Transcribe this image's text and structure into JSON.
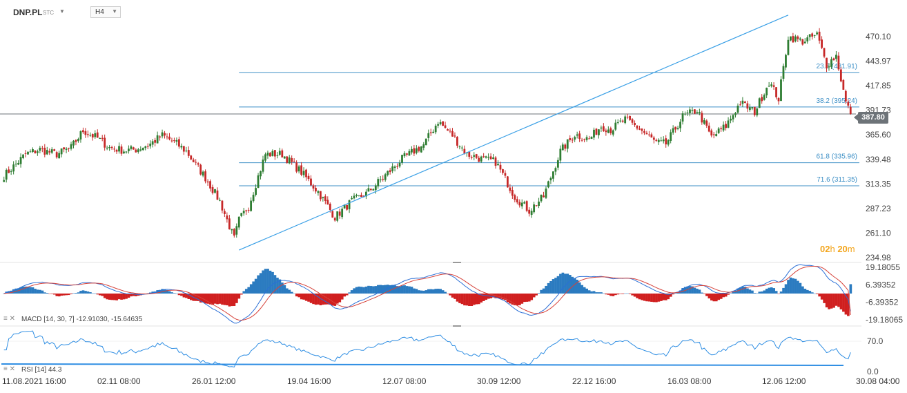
{
  "header": {
    "symbol": "DNP.PL",
    "symbol_tag": "STC",
    "timeframe": "H4"
  },
  "colors": {
    "up": "#2e7d32",
    "down": "#c62828",
    "fib_line": "#3c8fc6",
    "trend_line": "#3aa0e6",
    "macd_line": "#2b6fd6",
    "signal_line": "#d6423a",
    "rsi_line": "#2f8ee3",
    "countdown": "#f3a51c"
  },
  "price_tag": "387.80",
  "countdown": {
    "hours": "02",
    "hours_unit": "h",
    "minutes": "20",
    "minutes_unit": "m"
  },
  "macd_label": {
    "name": "MACD",
    "params": "[14, 30, 7]",
    "values": "-12.91030,  -15.64635"
  },
  "rsi_label": {
    "name": "RSI",
    "params": "[14]",
    "value": "44.3"
  },
  "chart_data": [
    {
      "type": "candlestick",
      "ylim": [
        234.98,
        496.0
      ],
      "y_ticks": [
        "470.10",
        "443.97",
        "417.85",
        "391.73",
        "365.60",
        "339.48",
        "313.35",
        "287.23",
        "261.10",
        "234.98"
      ],
      "x_ticks": [
        "11.08.2021  16:00",
        "02.11  08:00",
        "26.01  12:00",
        "19.04  16:00",
        "12.07  08:00",
        "30.09  12:00",
        "22.12  16:00",
        "16.03  08:00",
        "12.06  12:00",
        "30.08  04:00"
      ],
      "last_price": 387.8,
      "anchors": [
        [
          0,
          322
        ],
        [
          4,
          332
        ],
        [
          9,
          345
        ],
        [
          15,
          350
        ],
        [
          22,
          345
        ],
        [
          28,
          352
        ],
        [
          33,
          370
        ],
        [
          39,
          362
        ],
        [
          44,
          352
        ],
        [
          50,
          349
        ],
        [
          55,
          350
        ],
        [
          61,
          356
        ],
        [
          66,
          365
        ],
        [
          71,
          358
        ],
        [
          76,
          348
        ],
        [
          84,
          320
        ],
        [
          90,
          295
        ],
        [
          96,
          255
        ],
        [
          98,
          275
        ],
        [
          102,
          290
        ],
        [
          109,
          345
        ],
        [
          116,
          345
        ],
        [
          124,
          326
        ],
        [
          131,
          305
        ],
        [
          138,
          278
        ],
        [
          145,
          295
        ],
        [
          151,
          303
        ],
        [
          158,
          320
        ],
        [
          166,
          340
        ],
        [
          175,
          355
        ],
        [
          181,
          380
        ],
        [
          187,
          365
        ],
        [
          193,
          345
        ],
        [
          199,
          340
        ],
        [
          205,
          337
        ],
        [
          213,
          300
        ],
        [
          219,
          285
        ],
        [
          225,
          300
        ],
        [
          232,
          348
        ],
        [
          238,
          366
        ],
        [
          244,
          361
        ],
        [
          249,
          375
        ],
        [
          253,
          371
        ],
        [
          259,
          382
        ],
        [
          265,
          372
        ],
        [
          272,
          357
        ],
        [
          276,
          356
        ],
        [
          283,
          385
        ],
        [
          289,
          392
        ],
        [
          295,
          363
        ],
        [
          301,
          375
        ],
        [
          307,
          400
        ],
        [
          313,
          390
        ],
        [
          319,
          422
        ],
        [
          323,
          404
        ],
        [
          327,
          470
        ],
        [
          333,
          465
        ],
        [
          339,
          472
        ],
        [
          343,
          440
        ],
        [
          347,
          450
        ],
        [
          351,
          400
        ]
      ],
      "last_index": 353,
      "fib_levels": [
        {
          "label": "23.6 (431.91)",
          "value": 431.91
        },
        {
          "label": "38.2 (395.24)",
          "value": 395.24
        },
        {
          "label": "61.8 (335.96)",
          "value": 335.96
        },
        {
          "label": "71.6 (311.35)",
          "value": 311.35
        }
      ],
      "trend_line": {
        "from_index": 98,
        "from_value": 243.0,
        "to_index": 327,
        "to_value": 493.0
      }
    },
    {
      "type": "macd",
      "params": [
        14,
        30,
        7
      ],
      "macd": -12.9103,
      "signal": -15.64635,
      "ylim": [
        -26.0,
        26.0
      ],
      "y_ticks": [
        "19.18055",
        "6.39352",
        "-6.39352",
        "-19.18065"
      ]
    },
    {
      "type": "rsi",
      "period": 14,
      "value": 44.3,
      "ylim": [
        0,
        100
      ],
      "y_ticks": [
        "70.0",
        "0.0"
      ]
    }
  ]
}
